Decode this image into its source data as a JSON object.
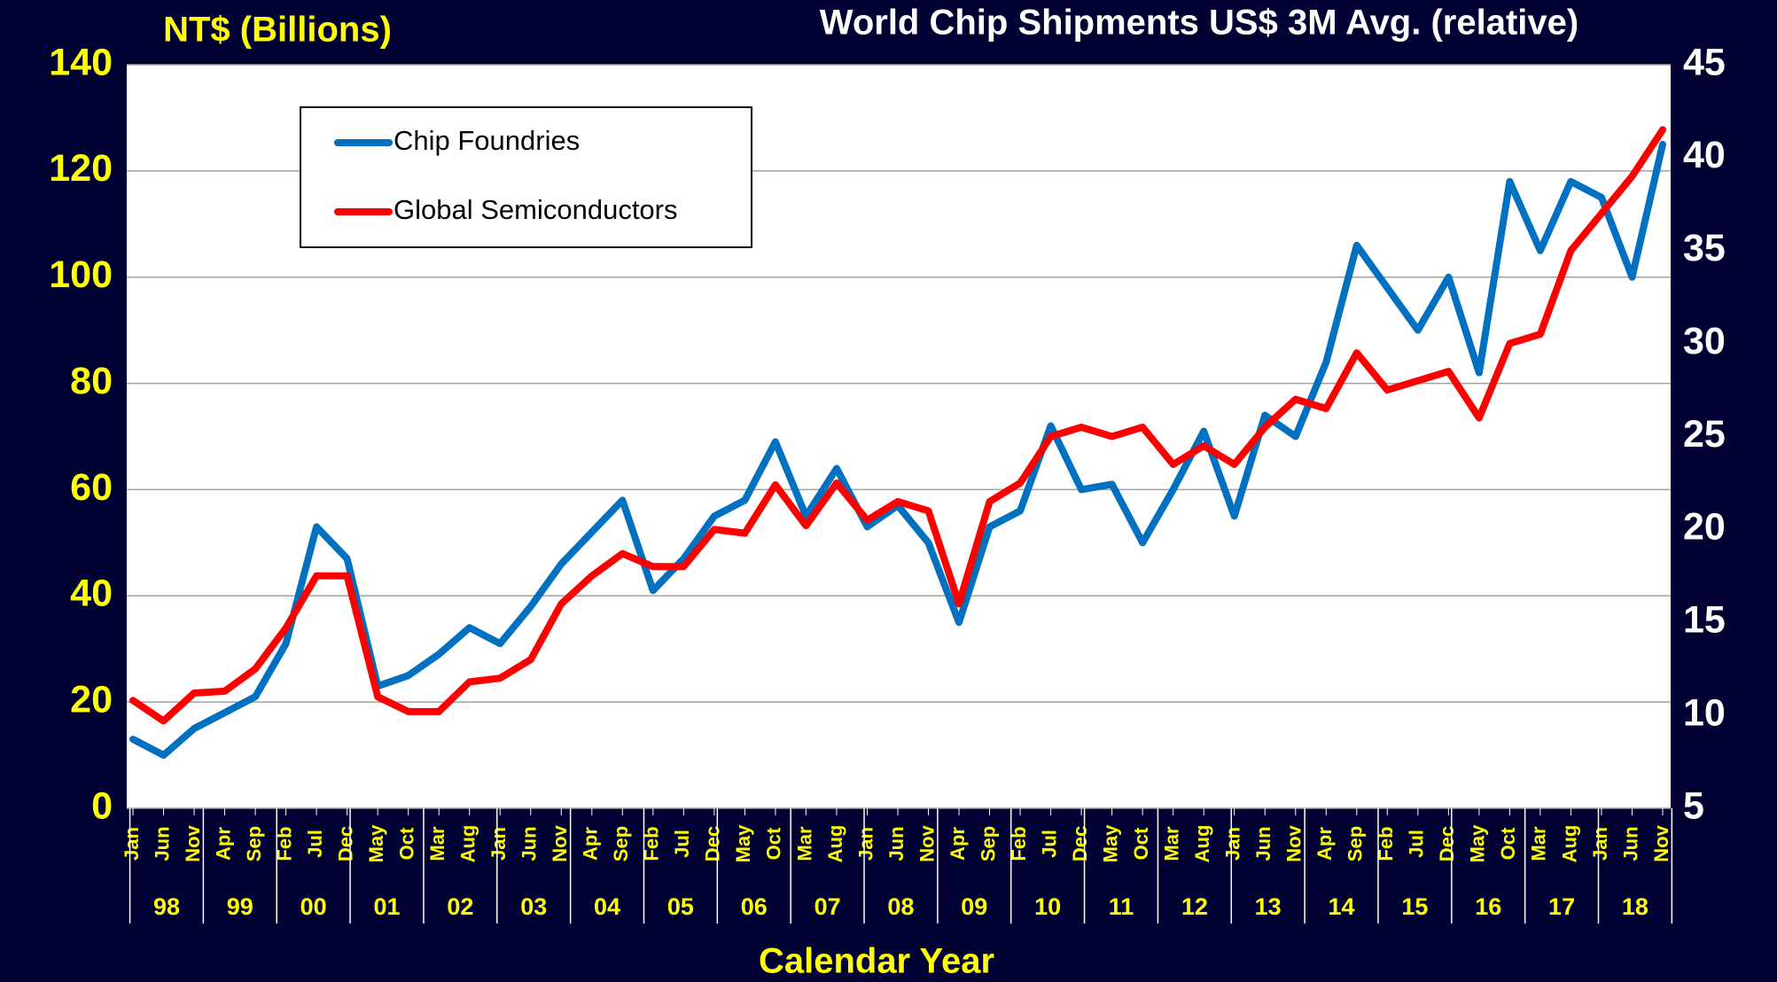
{
  "chart_data": {
    "type": "line",
    "title": "World Chip Shipments US$ 3M Avg. (relative)",
    "y_label": "NT$ (Billions)",
    "x_label": "Calendar Year",
    "categories": [
      "Jan",
      "Jun",
      "Nov",
      "Apr",
      "Sep",
      "Feb",
      "Jul",
      "Dec",
      "May",
      "Oct",
      "Mar",
      "Aug",
      "Jan",
      "Jun",
      "Nov",
      "Apr",
      "Sep",
      "Feb",
      "Jul",
      "Dec",
      "May",
      "Oct",
      "Mar",
      "Aug",
      "Jan",
      "Jun",
      "Nov",
      "Apr",
      "Sep",
      "Feb",
      "Jul",
      "Dec",
      "May",
      "Oct",
      "Mar",
      "Aug",
      "Jan",
      "Jun",
      "Nov",
      "Apr",
      "Sep",
      "Feb",
      "Jul",
      "Dec",
      "May",
      "Oct",
      "Mar",
      "Aug",
      "Jan",
      "Jun",
      "Nov"
    ],
    "year_labels": [
      "98",
      "99",
      "00",
      "01",
      "02",
      "03",
      "04",
      "05",
      "06",
      "07",
      "08",
      "09",
      "10",
      "11",
      "12",
      "13",
      "14",
      "15",
      "16",
      "17",
      "18"
    ],
    "series": [
      {
        "name": "Chip Foundries",
        "color": "#0070c0",
        "axis": "y",
        "values": [
          13,
          10,
          15,
          18,
          21,
          31,
          53,
          47,
          23,
          25,
          29,
          34,
          31,
          38,
          46,
          52,
          58,
          41,
          47,
          55,
          58,
          69,
          55,
          64,
          53,
          57,
          50,
          35,
          53,
          56,
          72,
          60,
          61,
          50,
          60,
          71,
          55,
          74,
          70,
          84,
          106,
          98,
          90,
          100,
          82,
          118,
          105,
          118,
          115,
          100,
          125
        ]
      },
      {
        "name": "Global Semiconductors",
        "color": "#ff0000",
        "axis": "y2",
        "values": [
          10.8,
          9.7,
          11.2,
          11.3,
          12.5,
          14.7,
          17.5,
          17.5,
          11,
          10.2,
          10.2,
          11.8,
          12,
          13,
          16,
          17.5,
          18.7,
          18,
          18,
          20,
          19.8,
          22.4,
          20.2,
          22.5,
          20.5,
          21.5,
          21,
          16,
          21.5,
          22.5,
          25,
          25.5,
          25,
          25.5,
          23.5,
          24.5,
          23.5,
          25.5,
          27,
          26.5,
          29.5,
          27.5,
          28,
          28.5,
          26,
          30,
          30.5,
          35,
          37,
          39,
          41.5
        ]
      }
    ],
    "ylim": [
      0,
      140
    ],
    "yticks": [
      0,
      20,
      40,
      60,
      80,
      100,
      120,
      140
    ],
    "y2lim": [
      5,
      45
    ],
    "y2ticks": [
      5,
      10,
      15,
      20,
      25,
      30,
      35,
      40,
      45
    ],
    "grid": true,
    "legend": "upper left"
  }
}
